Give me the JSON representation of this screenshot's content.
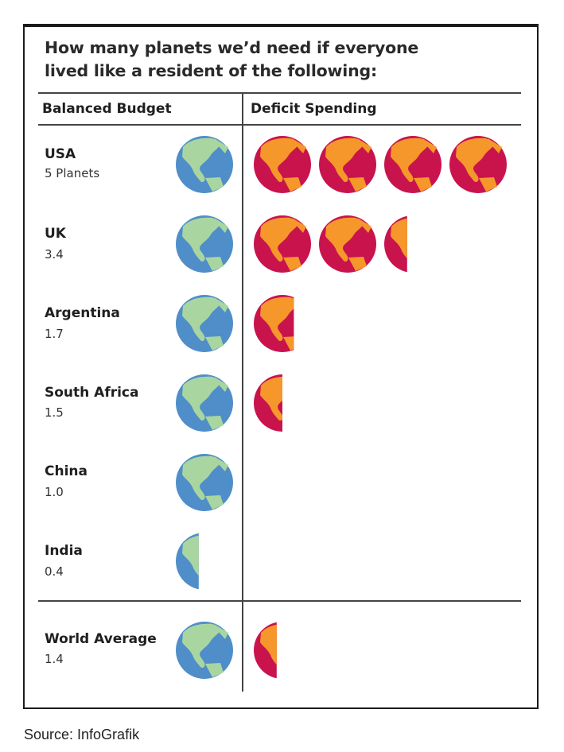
{
  "title_line1": "How many planets we’d need if everyone",
  "title_line2": "lived like a resident of the following:",
  "col_left": "Balanced Budget",
  "col_right": "Deficit Spending",
  "source": "Source: InfoGrafik",
  "colors": {
    "ocean": "#4f8ec9",
    "land": "#a9d6a0",
    "deficit_ocean": "#c9134d",
    "deficit_land": "#f5972a"
  },
  "globe_icon": "earth-globe-icon",
  "chart_data": {
    "type": "pictogram",
    "unit": "planets",
    "rows": [
      {
        "name": "USA",
        "label": "5  Planets",
        "value": 5.0
      },
      {
        "name": "UK",
        "label": "3.4",
        "value": 3.4
      },
      {
        "name": "Argentina",
        "label": "1.7",
        "value": 1.7
      },
      {
        "name": "South Africa",
        "label": "1.5",
        "value": 1.5
      },
      {
        "name": "China",
        "label": "1.0",
        "value": 1.0
      },
      {
        "name": "India",
        "label": "0.4",
        "value": 0.4
      },
      {
        "name": "World Average",
        "label": "1.4",
        "value": 1.4
      }
    ]
  }
}
